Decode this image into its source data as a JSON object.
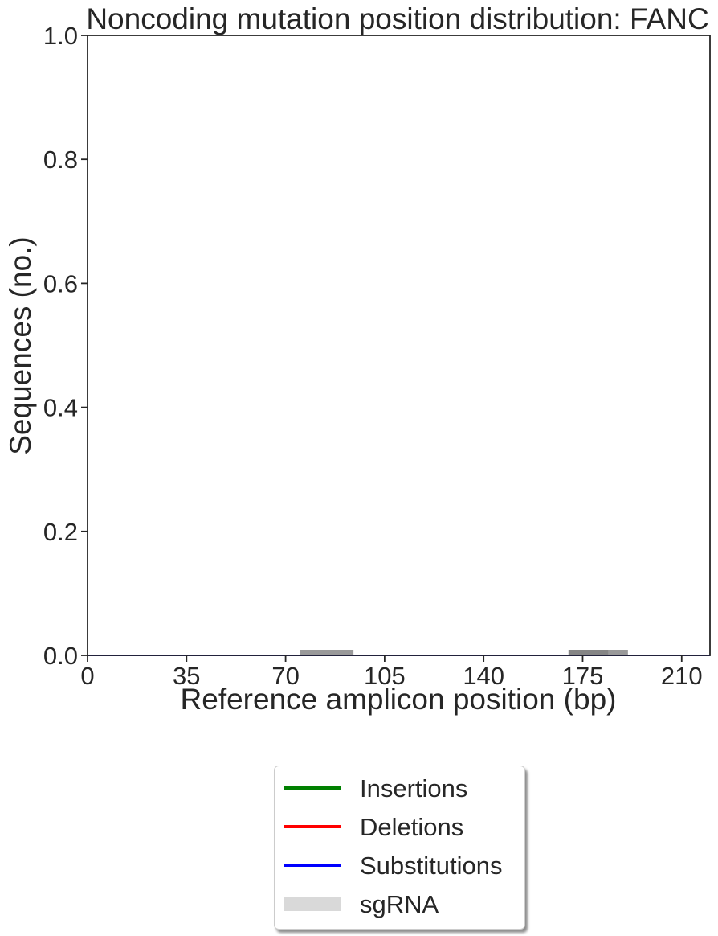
{
  "chart_data": {
    "type": "line",
    "title": "Noncoding mutation position distribution: FANC",
    "xlabel": "Reference amplicon position (bp)",
    "ylabel": "Sequences (no.)",
    "xlim": [
      0,
      220
    ],
    "ylim": [
      0,
      1.0
    ],
    "x_ticks": [
      0,
      35,
      70,
      105,
      140,
      175,
      210
    ],
    "x_tick_labels": [
      "0",
      "35",
      "70",
      "105",
      "140",
      "175",
      "210"
    ],
    "y_ticks": [
      0.0,
      0.2,
      0.4,
      0.6,
      0.8,
      1.0
    ],
    "y_tick_labels": [
      "0.0",
      "0.2",
      "0.4",
      "0.6",
      "0.8",
      "1.0"
    ],
    "grid": false,
    "legend_position": "below",
    "series": [
      {
        "name": "Insertions",
        "color": "#008000",
        "x": [
          0,
          220
        ],
        "values": [
          0,
          0
        ]
      },
      {
        "name": "Deletions",
        "color": "#ff0000",
        "x": [
          0,
          220
        ],
        "values": [
          0,
          0
        ]
      },
      {
        "name": "Substitutions",
        "color": "#0000ff",
        "x": [
          0,
          220
        ],
        "values": [
          0,
          0
        ]
      }
    ],
    "sgRNA": {
      "name": "sgRNA",
      "color": "#808080",
      "intervals": [
        [
          75,
          94
        ],
        [
          170,
          191
        ],
        [
          170,
          184
        ]
      ]
    }
  }
}
